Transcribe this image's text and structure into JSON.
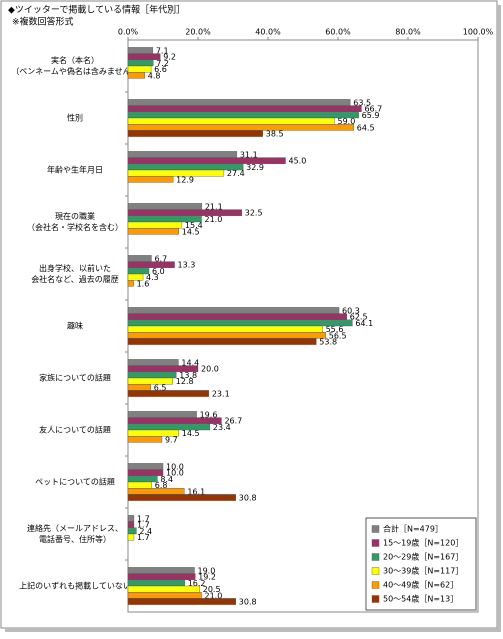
{
  "chart_data": {
    "type": "bar",
    "orientation": "horizontal",
    "title": "◆ツイッターで掲載している情報［年代別］",
    "subtitle": "※複数回答形式",
    "categories": [
      [
        "実名（本名）",
        "（ペンネームや偽名は含みません）"
      ],
      [
        "性別"
      ],
      [
        "年齢や生年月日"
      ],
      [
        "現在の職業",
        "（会社名・学校名を含む）"
      ],
      [
        "出身学校、以前いた",
        "会社名など、過去の履歴"
      ],
      [
        "趣味"
      ],
      [
        "家族についての話題"
      ],
      [
        "友人についての話題"
      ],
      [
        "ペットについての話題"
      ],
      [
        "連絡先（メールアドレス、",
        "電話番号、住所等）"
      ],
      [
        "上記のいずれも掲載していない"
      ]
    ],
    "series": [
      {
        "name": "合計［N=479］",
        "color": "#808080",
        "values": [
          7.1,
          63.5,
          31.1,
          21.1,
          6.7,
          60.3,
          14.4,
          19.6,
          10.0,
          1.7,
          19.0
        ],
        "value_labels": [
          "7.1",
          "63.5",
          "31.1",
          "21.1",
          "6.7",
          "60.3",
          "14.4",
          "19.6",
          "10.0",
          "1.7",
          "19.0"
        ]
      },
      {
        "name": "15～19歳［N=120］",
        "color": "#993366",
        "values": [
          9.2,
          66.7,
          45.0,
          32.5,
          13.3,
          62.5,
          20.0,
          26.7,
          10.0,
          1.7,
          19.2
        ],
        "value_labels": [
          "9.2",
          "66.7",
          "45.0",
          "32.5",
          "13.3",
          "62.5",
          "20.0",
          "26.7",
          "10.0",
          "1.7",
          "19.2"
        ]
      },
      {
        "name": "20～29歳［N=167］",
        "color": "#339966",
        "values": [
          7.2,
          65.9,
          32.9,
          21.0,
          6.0,
          64.1,
          13.8,
          23.4,
          8.4,
          2.4,
          16.2
        ],
        "value_labels": [
          "7.2",
          "65.9",
          "32.9",
          "21.0",
          "6.0",
          "64.1",
          "13.8",
          "23.4",
          "8.4",
          "2.4",
          "16.2"
        ]
      },
      {
        "name": "30～39歳［N=117］",
        "color": "#ffff00",
        "values": [
          6.6,
          59.0,
          27.4,
          15.4,
          4.3,
          55.6,
          12.8,
          14.5,
          6.8,
          1.7,
          20.5
        ],
        "value_labels": [
          "6.6",
          "59.0",
          "27.4",
          "15.4",
          "4.3",
          "55.6",
          "12.8",
          "14.5",
          "6.8",
          "1.7",
          "20.5"
        ]
      },
      {
        "name": "40～49歳［N=62］",
        "color": "#ff9900",
        "values": [
          4.8,
          64.5,
          12.9,
          14.5,
          1.6,
          56.5,
          6.5,
          9.7,
          16.1,
          null,
          21.0
        ],
        "value_labels": [
          "4.8",
          "64.5",
          "12.9",
          "14.5",
          "1.6",
          "56.5",
          "6.5",
          "9.7",
          "16.1",
          null,
          "21.0"
        ]
      },
      {
        "name": "50～54歳［N=13］",
        "color": "#993300",
        "values": [
          null,
          38.5,
          null,
          null,
          null,
          53.8,
          23.1,
          null,
          30.8,
          null,
          30.8
        ],
        "value_labels": [
          null,
          "38.5",
          null,
          null,
          null,
          "53.8",
          "23.1",
          null,
          "30.8",
          null,
          "30.8"
        ]
      }
    ],
    "xlim": [
      0,
      100
    ],
    "xticks": [
      {
        "value": 0,
        "label": "0.0%"
      },
      {
        "value": 20,
        "label": "20.0%"
      },
      {
        "value": 40,
        "label": "40.0%"
      },
      {
        "value": 60,
        "label": "60.0%"
      },
      {
        "value": 80,
        "label": "80.0%"
      },
      {
        "value": 100,
        "label": "100.0%"
      }
    ],
    "grid": false,
    "legend": "bottom-right"
  }
}
